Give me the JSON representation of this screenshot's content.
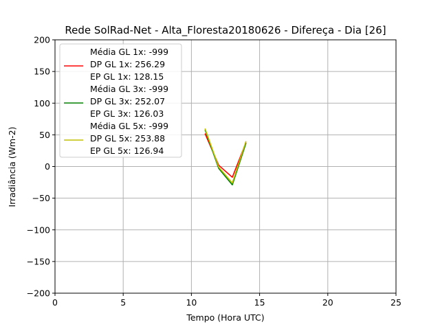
{
  "chart_data": {
    "type": "line",
    "title": "Rede SolRad-Net - Alta_Floresta20180626 - Difereça - Dia [26]",
    "xlabel": "Tempo (Hora UTC)",
    "ylabel": "Irradiância (Wm-2)",
    "xlim": [
      0,
      25
    ],
    "ylim": [
      -200,
      200
    ],
    "xticks": [
      0,
      5,
      10,
      15,
      20,
      25
    ],
    "yticks": [
      -200,
      -150,
      -100,
      -50,
      0,
      50,
      100,
      150,
      200
    ],
    "grid": true,
    "legend_position": "top-left",
    "series": [
      {
        "name": "GL 1x",
        "color": "#ff0000",
        "legend_lines": [
          "Média GL 1x: -999",
          "DP GL 1x: 256.29",
          "EP GL 1x: 128.15"
        ],
        "x": [
          11,
          12,
          13,
          14
        ],
        "y": [
          52,
          2,
          -17,
          38
        ]
      },
      {
        "name": "GL 3x",
        "color": "#008000",
        "legend_lines": [
          "Média GL 3x: -999",
          "DP GL 3x: 252.07",
          "EP GL 3x: 126.03"
        ],
        "x": [
          11,
          12,
          13,
          14
        ],
        "y": [
          58,
          -3,
          -29,
          37
        ]
      },
      {
        "name": "GL 5x",
        "color": "#bfbf00",
        "legend_lines": [
          "Média GL 5x: -999",
          "DP GL 5x: 253.88",
          "EP GL 5x: 126.94"
        ],
        "x": [
          11,
          12,
          13,
          14
        ],
        "y": [
          60,
          -1,
          -26,
          40
        ]
      }
    ]
  }
}
